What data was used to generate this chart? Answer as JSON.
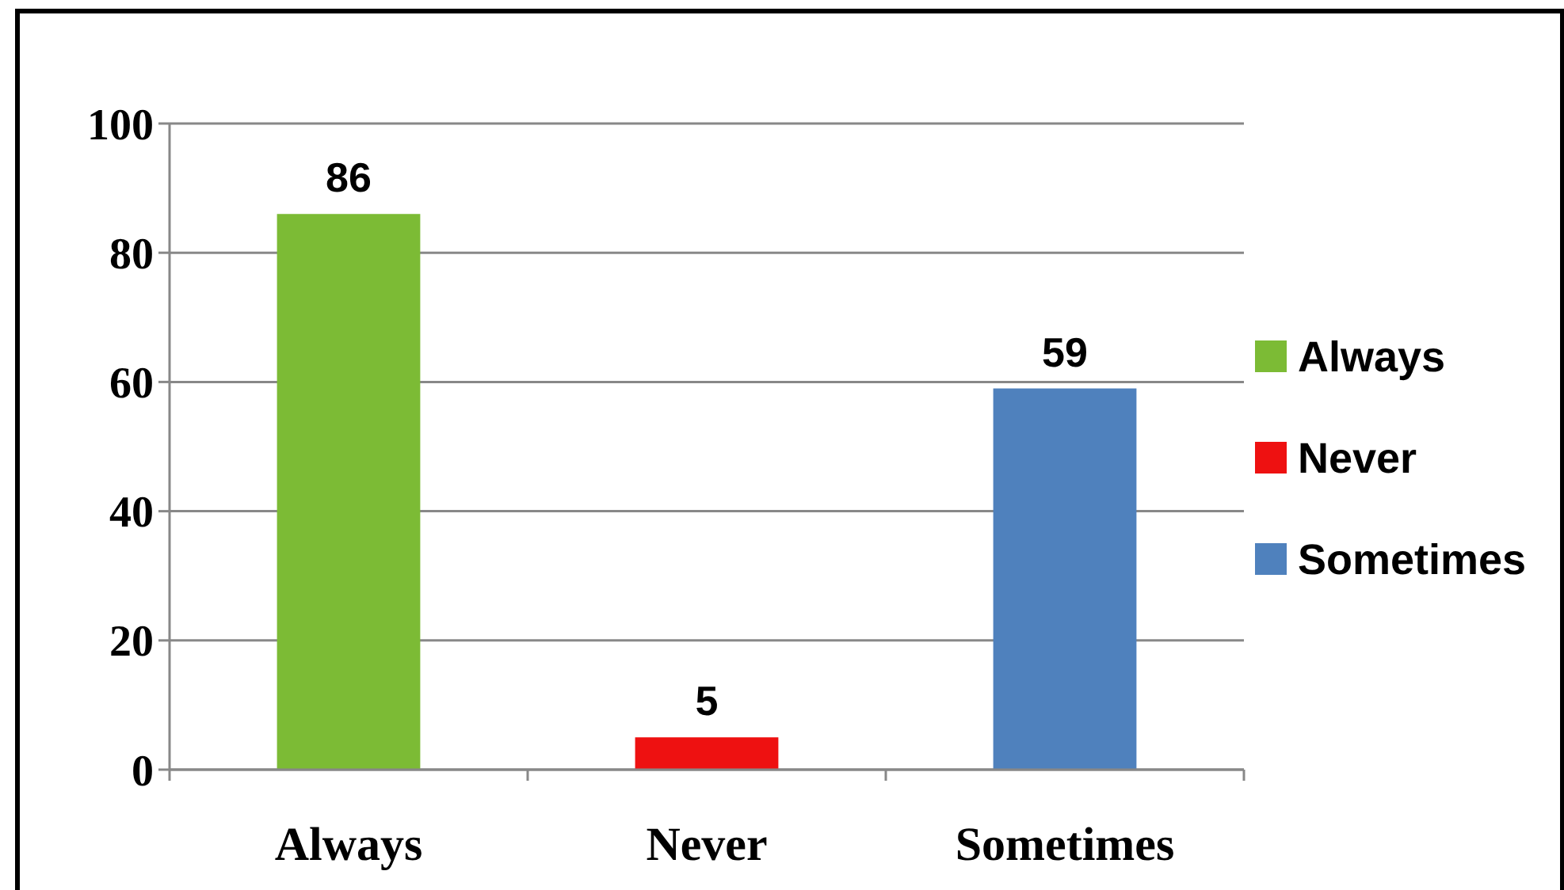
{
  "chart_data": {
    "type": "bar",
    "categories": [
      "Always",
      "Never",
      "Sometimes"
    ],
    "series": [
      {
        "name": "Always",
        "color": "#7cbb35",
        "values": [
          86,
          null,
          null
        ]
      },
      {
        "name": "Never",
        "color": "#ee1111",
        "values": [
          null,
          5,
          null
        ]
      },
      {
        "name": "Sometimes",
        "color": "#4f81bd",
        "values": [
          null,
          null,
          59
        ]
      }
    ],
    "stacked": true,
    "ylim": [
      0,
      100
    ],
    "yticks": [
      0,
      20,
      40,
      60,
      80,
      100
    ],
    "grid": "y",
    "legend": "right",
    "data_labels": true
  }
}
